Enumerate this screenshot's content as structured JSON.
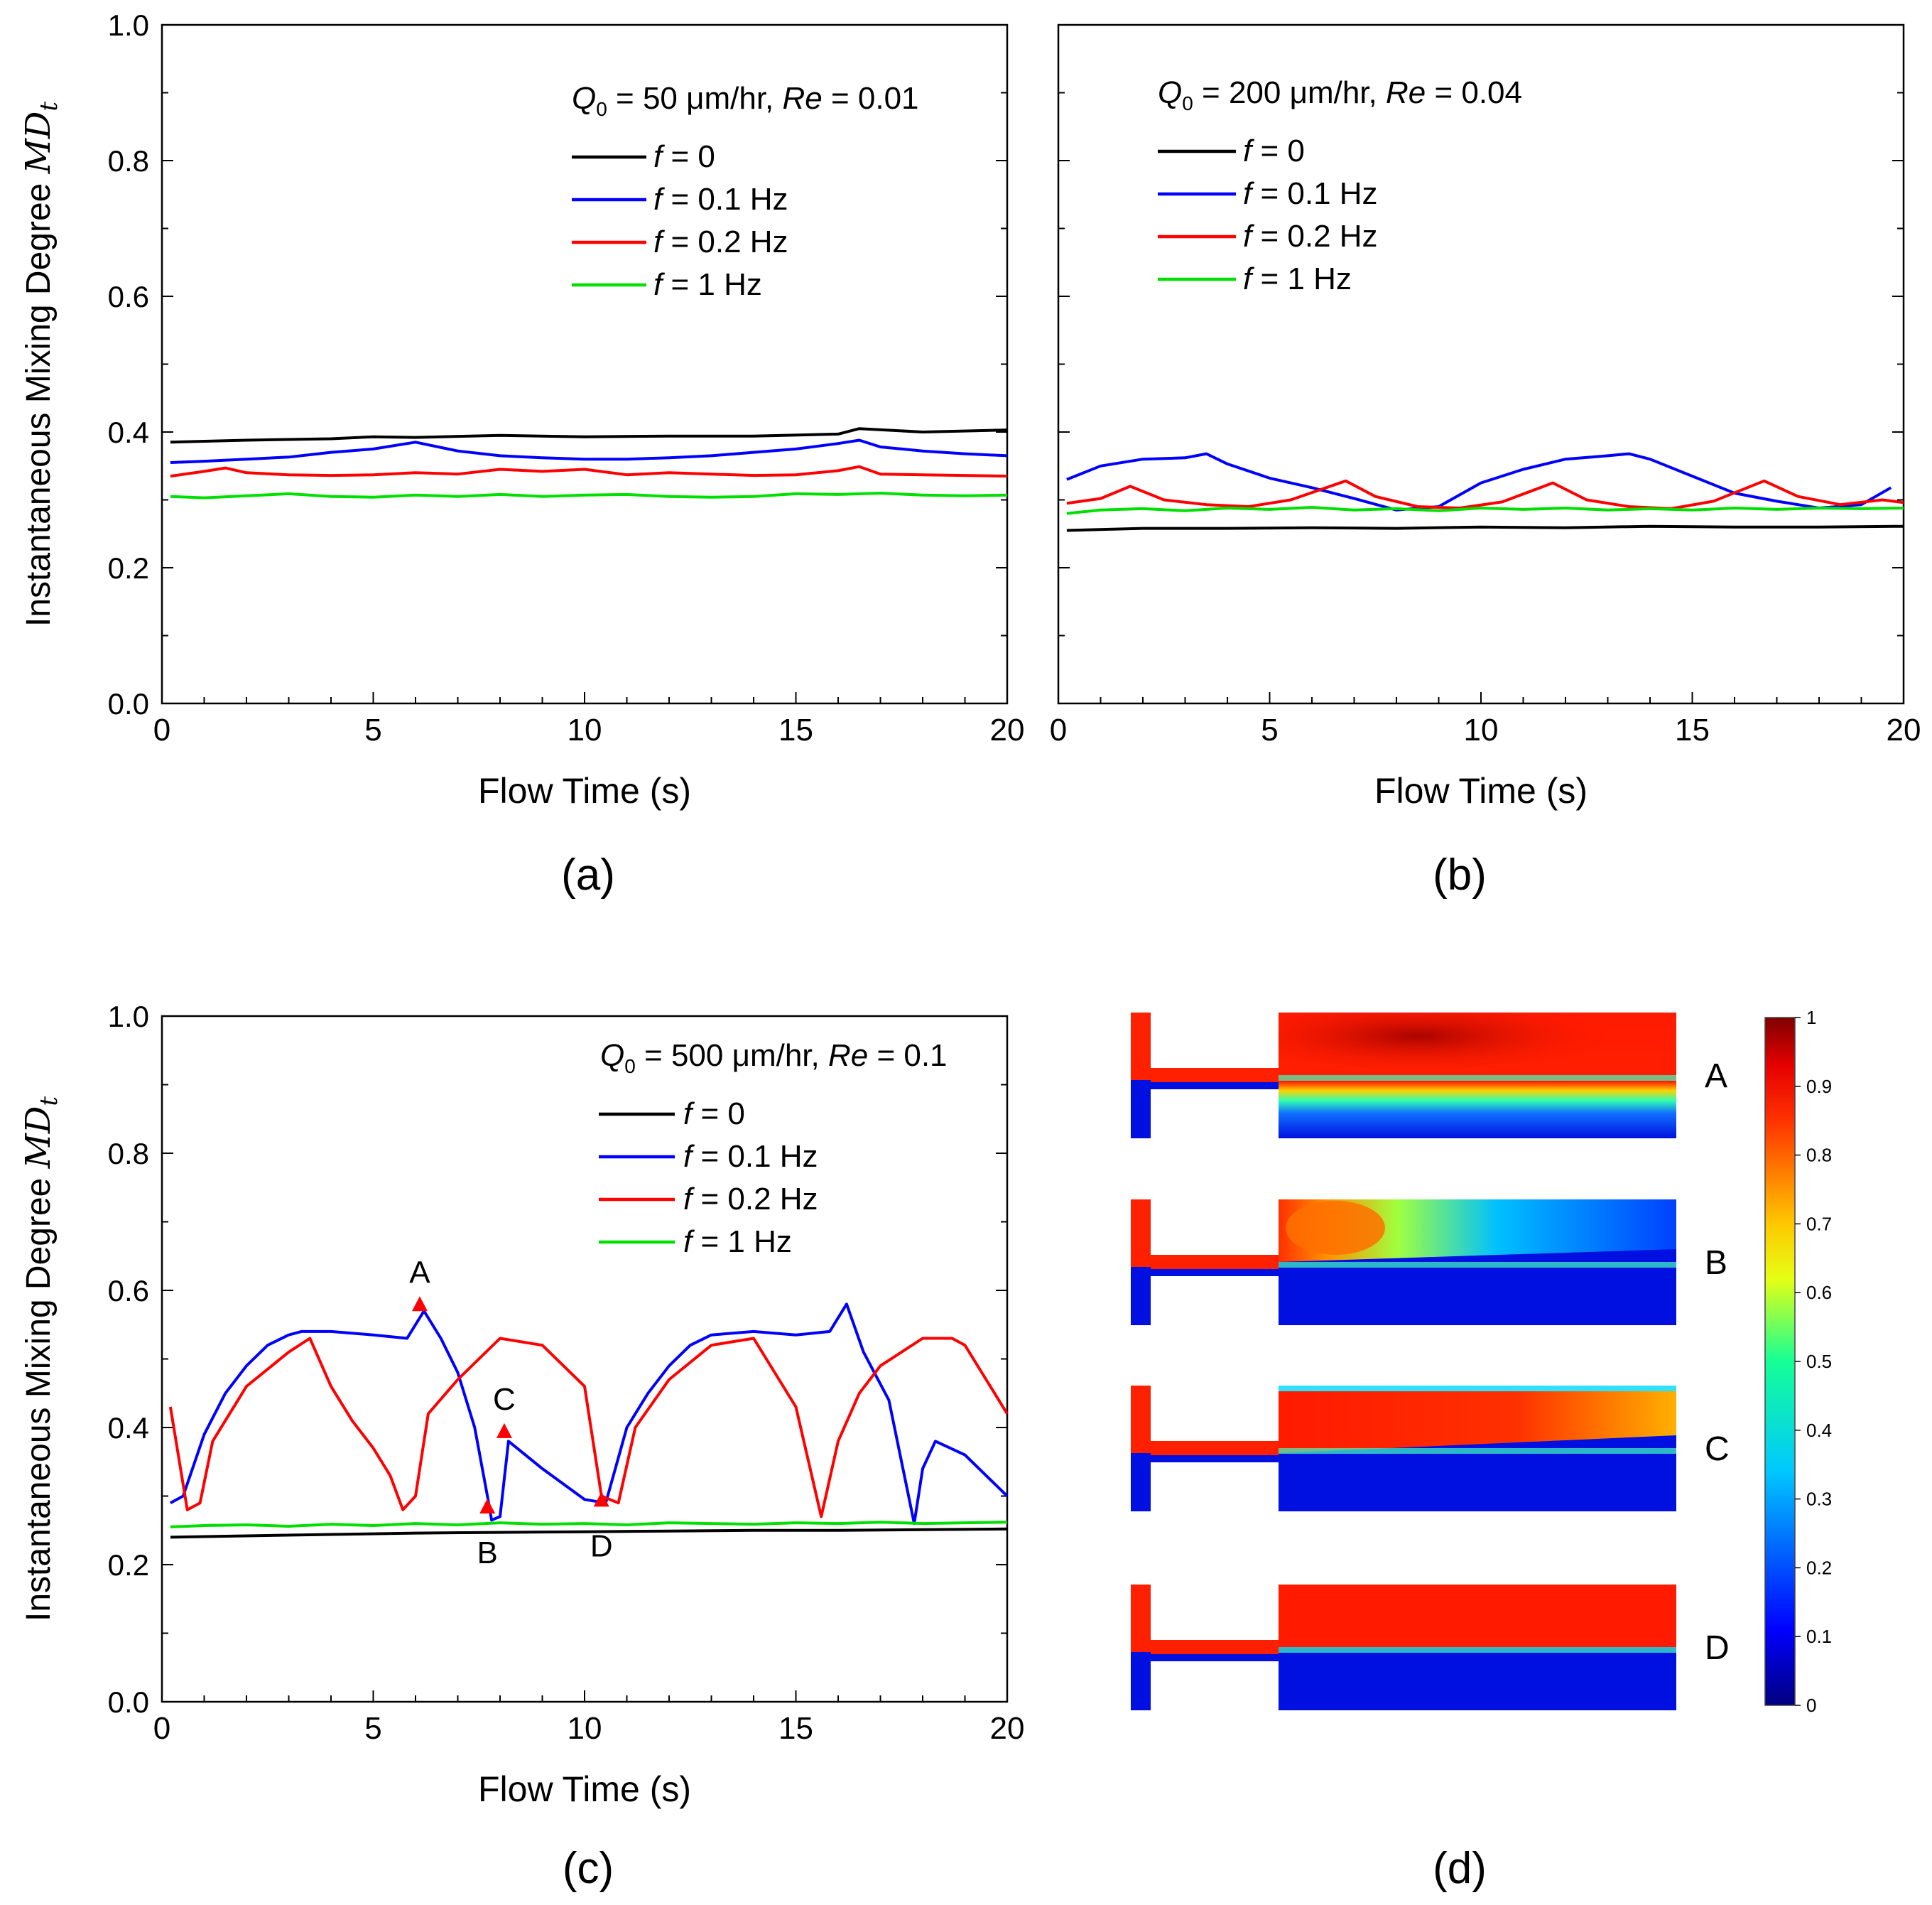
{
  "chart_data": [
    {
      "panel": "a",
      "type": "line",
      "caption": "(a)",
      "xlabel": "Flow Time (s)",
      "ylabel": "Instantaneous Mixing Degree",
      "ylabel_symbol": "MD",
      "ylabel_sub": "t",
      "xlim": [
        0,
        20
      ],
      "ylim": [
        0,
        1.0
      ],
      "xticks": [
        "0",
        "5",
        "10",
        "15",
        "20"
      ],
      "yticks": [
        "0.0",
        "0.2",
        "0.4",
        "0.6",
        "0.8",
        "1.0"
      ],
      "condition": {
        "q": "Q",
        "q_sub": "0",
        "text": " = 50 μm/hr, ",
        "re": "Re",
        "re_value": " = 0.01"
      },
      "series": [
        {
          "name": "f = 0",
          "f_label": "f",
          "value_label": " = 0",
          "color": "#000000",
          "x": [
            0.2,
            2,
            4,
            5,
            6,
            8,
            10,
            12,
            14,
            16,
            16.5,
            18,
            20
          ],
          "y": [
            0.385,
            0.388,
            0.39,
            0.393,
            0.392,
            0.395,
            0.393,
            0.394,
            0.394,
            0.397,
            0.405,
            0.4,
            0.403
          ]
        },
        {
          "name": "f = 0.1 Hz",
          "f_label": "f",
          "value_label": " = 0.1 Hz",
          "color": "#0000ff",
          "x": [
            0.2,
            1,
            2,
            3,
            4,
            5,
            6,
            7,
            8,
            9,
            10,
            11,
            12,
            13,
            14,
            15,
            16,
            16.5,
            17,
            18,
            19,
            20
          ],
          "y": [
            0.355,
            0.357,
            0.36,
            0.363,
            0.37,
            0.375,
            0.385,
            0.372,
            0.365,
            0.362,
            0.36,
            0.36,
            0.362,
            0.365,
            0.37,
            0.375,
            0.383,
            0.388,
            0.378,
            0.372,
            0.368,
            0.365
          ]
        },
        {
          "name": "f = 0.2 Hz",
          "f_label": "f",
          "value_label": " = 0.2 Hz",
          "color": "#ff0000",
          "x": [
            0.2,
            1,
            1.5,
            2,
            3,
            4,
            5,
            6,
            7,
            8,
            9,
            10,
            11,
            12,
            13,
            14,
            15,
            16,
            16.5,
            17,
            18,
            19,
            20
          ],
          "y": [
            0.335,
            0.342,
            0.347,
            0.34,
            0.337,
            0.336,
            0.337,
            0.34,
            0.338,
            0.345,
            0.342,
            0.345,
            0.337,
            0.34,
            0.338,
            0.336,
            0.337,
            0.343,
            0.349,
            0.338,
            0.337,
            0.336,
            0.335
          ]
        },
        {
          "name": "f = 1 Hz",
          "f_label": "f",
          "value_label": " = 1 Hz",
          "color": "#00e000",
          "x": [
            0.2,
            1,
            2,
            3,
            4,
            5,
            6,
            7,
            8,
            9,
            10,
            11,
            12,
            13,
            14,
            15,
            16,
            17,
            18,
            19,
            20
          ],
          "y": [
            0.305,
            0.303,
            0.306,
            0.309,
            0.305,
            0.304,
            0.307,
            0.305,
            0.308,
            0.305,
            0.307,
            0.308,
            0.305,
            0.304,
            0.305,
            0.309,
            0.308,
            0.31,
            0.307,
            0.306,
            0.307
          ]
        }
      ]
    },
    {
      "panel": "b",
      "type": "line",
      "caption": "(b)",
      "xlabel": "Flow Time (s)",
      "xlim": [
        0,
        20
      ],
      "ylim": [
        0,
        1.0
      ],
      "xticks": [
        "0",
        "5",
        "10",
        "15",
        "20"
      ],
      "condition": {
        "q": "Q",
        "q_sub": "0",
        "text": " = 200 μm/hr, ",
        "re": "Re",
        "re_value": " = 0.04"
      },
      "series": [
        {
          "name": "f = 0",
          "f_label": "f",
          "value_label": " = 0",
          "color": "#000000",
          "x": [
            0.2,
            2,
            4,
            6,
            8,
            10,
            12,
            14,
            16,
            18,
            20
          ],
          "y": [
            0.255,
            0.258,
            0.258,
            0.259,
            0.258,
            0.26,
            0.259,
            0.261,
            0.26,
            0.26,
            0.261
          ]
        },
        {
          "name": "f = 0.1 Hz",
          "f_label": "f",
          "value_label": " = 0.1 Hz",
          "color": "#0000ff",
          "x": [
            0.2,
            1,
            2,
            3,
            3.5,
            4,
            5,
            6,
            7,
            8,
            9,
            10,
            11,
            12,
            13,
            13.5,
            14,
            15,
            16,
            17,
            18,
            19,
            19.7
          ],
          "y": [
            0.33,
            0.35,
            0.36,
            0.362,
            0.368,
            0.353,
            0.332,
            0.318,
            0.302,
            0.285,
            0.29,
            0.325,
            0.345,
            0.36,
            0.365,
            0.368,
            0.36,
            0.335,
            0.31,
            0.298,
            0.288,
            0.293,
            0.318
          ]
        },
        {
          "name": "f = 0.2 Hz",
          "f_label": "f",
          "value_label": " = 0.2 Hz",
          "color": "#ff0000",
          "x": [
            0.2,
            1,
            1.7,
            2.5,
            3.5,
            4.5,
            5.5,
            6.8,
            7.5,
            8.5,
            9.5,
            10.5,
            11.7,
            12.5,
            13.5,
            14.5,
            15.5,
            16.7,
            17.5,
            18.5,
            19.5,
            20
          ],
          "y": [
            0.295,
            0.302,
            0.32,
            0.3,
            0.293,
            0.29,
            0.3,
            0.328,
            0.305,
            0.29,
            0.288,
            0.297,
            0.325,
            0.3,
            0.29,
            0.287,
            0.298,
            0.328,
            0.305,
            0.293,
            0.3,
            0.296
          ]
        },
        {
          "name": "f = 1 Hz",
          "f_label": "f",
          "value_label": " = 1 Hz",
          "color": "#00e000",
          "x": [
            0.2,
            1,
            2,
            3,
            4,
            5,
            6,
            7,
            8,
            9,
            10,
            11,
            12,
            13,
            14,
            15,
            16,
            17,
            18,
            19,
            20
          ],
          "y": [
            0.28,
            0.285,
            0.287,
            0.284,
            0.288,
            0.286,
            0.289,
            0.285,
            0.287,
            0.284,
            0.288,
            0.286,
            0.288,
            0.285,
            0.287,
            0.285,
            0.288,
            0.286,
            0.288,
            0.287,
            0.288
          ]
        }
      ]
    },
    {
      "panel": "c",
      "type": "line",
      "caption": "(c)",
      "xlabel": "Flow Time (s)",
      "ylabel": "Instantaneous Mixing Degree",
      "ylabel_symbol": "MD",
      "ylabel_sub": "t",
      "xlim": [
        0,
        20
      ],
      "ylim": [
        0,
        1.0
      ],
      "xticks": [
        "0",
        "5",
        "10",
        "15",
        "20"
      ],
      "yticks": [
        "0.0",
        "0.2",
        "0.4",
        "0.6",
        "0.8",
        "1.0"
      ],
      "condition": {
        "q": "Q",
        "q_sub": "0",
        "text": " = 500 μm/hr, ",
        "re": "Re",
        "re_value": " = 0.1"
      },
      "series": [
        {
          "name": "f = 0",
          "f_label": "f",
          "value_label": " = 0",
          "color": "#000000",
          "x": [
            0.2,
            2,
            4,
            6,
            8,
            10,
            12,
            14,
            16,
            18,
            20
          ],
          "y": [
            0.24,
            0.242,
            0.244,
            0.246,
            0.247,
            0.248,
            0.249,
            0.25,
            0.25,
            0.251,
            0.252
          ]
        },
        {
          "name": "f = 0.1 Hz",
          "f_label": "f",
          "value_label": " = 0.1 Hz",
          "color": "#0000ff",
          "x": [
            0.2,
            0.5,
            1,
            1.5,
            2,
            2.5,
            3,
            3.3,
            4,
            5,
            5.8,
            6.2,
            6.6,
            7.0,
            7.4,
            7.7,
            7.8,
            8.0,
            8.2,
            9,
            10,
            10.5,
            11,
            11.5,
            12,
            12.5,
            13,
            14,
            15,
            15.8,
            16.2,
            16.6,
            17.2,
            17.6,
            17.8,
            18.0,
            18.3,
            19,
            20
          ],
          "y": [
            0.29,
            0.3,
            0.39,
            0.45,
            0.49,
            0.52,
            0.535,
            0.54,
            0.54,
            0.535,
            0.53,
            0.57,
            0.53,
            0.48,
            0.4,
            0.3,
            0.265,
            0.27,
            0.38,
            0.34,
            0.295,
            0.29,
            0.4,
            0.45,
            0.49,
            0.52,
            0.535,
            0.54,
            0.535,
            0.54,
            0.58,
            0.51,
            0.44,
            0.32,
            0.26,
            0.34,
            0.38,
            0.36,
            0.3
          ]
        },
        {
          "name": "f = 0.2 Hz",
          "f_label": "f",
          "value_label": " = 0.2 Hz",
          "color": "#ff0000",
          "x": [
            0.2,
            0.6,
            0.9,
            1.2,
            2,
            3,
            3.5,
            4,
            4.5,
            5,
            5.4,
            5.7,
            6,
            6.3,
            7,
            8,
            9,
            10,
            10.4,
            10.8,
            11.2,
            12,
            13,
            14,
            15,
            15.6,
            16,
            16.5,
            17,
            18,
            18.7,
            19,
            19.5,
            20
          ],
          "y": [
            0.43,
            0.28,
            0.29,
            0.38,
            0.46,
            0.51,
            0.53,
            0.46,
            0.41,
            0.37,
            0.33,
            0.28,
            0.3,
            0.42,
            0.47,
            0.53,
            0.52,
            0.46,
            0.3,
            0.29,
            0.4,
            0.47,
            0.52,
            0.53,
            0.43,
            0.27,
            0.38,
            0.45,
            0.49,
            0.53,
            0.53,
            0.52,
            0.47,
            0.42
          ]
        },
        {
          "name": "f = 1 Hz",
          "f_label": "f",
          "value_label": " = 1 Hz",
          "color": "#00e000",
          "x": [
            0.2,
            1,
            2,
            3,
            4,
            5,
            6,
            7,
            8,
            9,
            10,
            11,
            12,
            13,
            14,
            15,
            16,
            17,
            18,
            19,
            20
          ],
          "y": [
            0.255,
            0.257,
            0.258,
            0.256,
            0.259,
            0.257,
            0.26,
            0.258,
            0.261,
            0.259,
            0.26,
            0.258,
            0.261,
            0.26,
            0.259,
            0.261,
            0.26,
            0.262,
            0.26,
            0.261,
            0.262
          ]
        }
      ],
      "markers": [
        {
          "label": "A",
          "x": 6.1,
          "y": 0.58,
          "label_position": "above"
        },
        {
          "label": "B",
          "x": 7.7,
          "y": 0.285,
          "label_position": "below"
        },
        {
          "label": "C",
          "x": 8.1,
          "y": 0.395,
          "label_position": "above"
        },
        {
          "label": "D",
          "x": 10.4,
          "y": 0.295,
          "label_position": "below"
        }
      ]
    },
    {
      "panel": "d",
      "type": "heatmap",
      "caption": "(d)",
      "snapshots": [
        "A",
        "B",
        "C",
        "D"
      ],
      "colorbar": {
        "min": 0,
        "max": 1,
        "ticks": [
          "1",
          "0.9",
          "0.8",
          "0.7",
          "0.6",
          "0.5",
          "0.4",
          "0.3",
          "0.2",
          "0.1",
          "0"
        ]
      }
    }
  ]
}
